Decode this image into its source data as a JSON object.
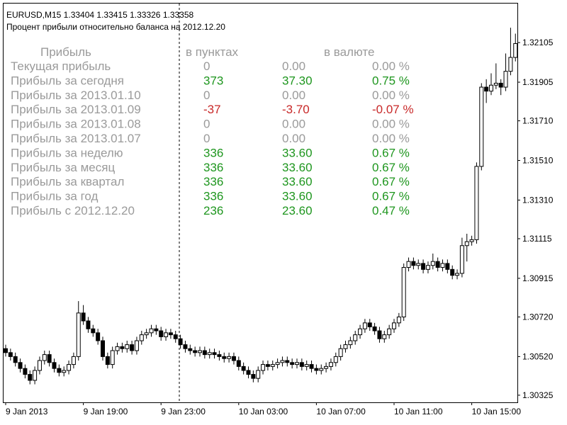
{
  "chart_data": {
    "type": "candlestick",
    "title": "EURUSD,M15  1.33404 1.33415 1.33326 1.33358",
    "subtitle": "Процент прибыли относительно баланса на 2012.12.20",
    "up_color": "#ffffff",
    "down_color": "#000000",
    "wick_color": "#000000",
    "categories": [
      "9 Jan 2013",
      null,
      null,
      null,
      null,
      null,
      null,
      null,
      null,
      null,
      null,
      null,
      null,
      null,
      null,
      null,
      "9 Jan 19:00",
      null,
      null,
      null,
      null,
      null,
      null,
      null,
      null,
      null,
      null,
      null,
      null,
      null,
      null,
      null,
      "9 Jan 23:00",
      null,
      null,
      null,
      null,
      null,
      null,
      null,
      null,
      null,
      null,
      null,
      null,
      null,
      null,
      null,
      "10 Jan 03:00",
      null,
      null,
      null,
      null,
      null,
      null,
      null,
      null,
      null,
      null,
      null,
      null,
      null,
      null,
      null,
      "10 Jan 07:00",
      null,
      null,
      null,
      null,
      null,
      null,
      null,
      null,
      null,
      null,
      null,
      null,
      null,
      null,
      null,
      "10 Jan 11:00",
      null,
      null,
      null,
      null,
      null,
      null,
      null,
      null,
      null,
      null,
      null,
      null,
      null,
      null,
      null,
      "10 Jan 15:00",
      null,
      null,
      null,
      null,
      null,
      null,
      null,
      null,
      null
    ],
    "open": [
      1.3056,
      1.3054,
      1.3052,
      1.3049,
      1.3046,
      1.3043,
      1.304,
      1.3045,
      1.305,
      1.3053,
      1.3049,
      1.3046,
      1.3044,
      1.3045,
      1.3048,
      1.3052,
      1.3074,
      1.307,
      1.3066,
      1.3064,
      1.306,
      1.3052,
      1.3048,
      1.3055,
      1.3057,
      1.3056,
      1.3058,
      1.3055,
      1.306,
      1.3063,
      1.3064,
      1.3066,
      1.3065,
      1.3062,
      1.3064,
      1.3063,
      1.3061,
      1.3058,
      1.3056,
      1.3055,
      1.3054,
      1.3055,
      1.3053,
      1.3054,
      1.3053,
      1.3052,
      1.3051,
      1.3052,
      1.305,
      1.3047,
      1.3045,
      1.3043,
      1.3041,
      1.3045,
      1.3048,
      1.3047,
      1.3048,
      1.3049,
      1.305,
      1.3049,
      1.3048,
      1.3049,
      1.3047,
      1.3048,
      1.3046,
      1.3045,
      1.3046,
      1.3047,
      1.3049,
      1.3052,
      1.3056,
      1.3058,
      1.306,
      1.3063,
      1.3066,
      1.3069,
      1.3067,
      1.3065,
      1.3061,
      1.3063,
      1.3066,
      1.3069,
      1.3072,
      1.3097,
      1.31,
      1.3098,
      1.3099,
      1.3096,
      1.3098,
      1.31,
      1.3097,
      1.3099,
      1.3096,
      1.3093,
      1.3094,
      1.3108,
      1.311,
      1.3111,
      1.3148,
      1.3188,
      1.3186,
      1.3189,
      1.319,
      1.3188,
      1.3196,
      1.3203
    ],
    "high": [
      1.3058,
      1.3056,
      1.3054,
      1.3051,
      1.3048,
      1.3045,
      1.3047,
      1.3052,
      1.3055,
      1.3055,
      1.3051,
      1.3048,
      1.3047,
      1.305,
      1.3054,
      1.308,
      1.3078,
      1.3072,
      1.3068,
      1.3066,
      1.3062,
      1.3054,
      1.3057,
      1.3059,
      1.3059,
      1.306,
      1.306,
      1.3062,
      1.3065,
      1.3066,
      1.3068,
      1.3068,
      1.3067,
      1.3066,
      1.3066,
      1.3065,
      1.3063,
      1.306,
      1.3058,
      1.3057,
      1.3057,
      1.3057,
      1.3056,
      1.3056,
      1.3055,
      1.3054,
      1.3054,
      1.3054,
      1.3052,
      1.3049,
      1.3047,
      1.3045,
      1.3047,
      1.305,
      1.305,
      1.305,
      1.3051,
      1.3052,
      1.3052,
      1.3051,
      1.3051,
      1.3051,
      1.305,
      1.305,
      1.3048,
      1.3048,
      1.3049,
      1.3051,
      1.3054,
      1.3058,
      1.306,
      1.3062,
      1.3065,
      1.3068,
      1.3071,
      1.3071,
      1.3069,
      1.3067,
      1.3065,
      1.3068,
      1.3071,
      1.3074,
      1.3099,
      1.3102,
      1.3102,
      1.3101,
      1.3101,
      1.31,
      1.3104,
      1.3102,
      1.3101,
      1.3101,
      1.3098,
      1.3096,
      1.3112,
      1.3114,
      1.3113,
      1.315,
      1.319,
      1.3192,
      1.3195,
      1.32,
      1.3192,
      1.3205,
      1.3218,
      1.3215
    ],
    "low": [
      1.3052,
      1.305,
      1.3047,
      1.3044,
      1.3041,
      1.3038,
      1.3038,
      1.3043,
      1.3048,
      1.3047,
      1.3044,
      1.3042,
      1.3042,
      1.3043,
      1.3046,
      1.305,
      1.3068,
      1.3064,
      1.3062,
      1.3058,
      1.305,
      1.3046,
      1.3046,
      1.3053,
      1.3054,
      1.3054,
      1.3053,
      1.3053,
      1.3058,
      1.3061,
      1.3062,
      1.3063,
      1.306,
      1.306,
      1.3061,
      1.3059,
      1.3056,
      1.3054,
      1.3053,
      1.3052,
      1.3052,
      1.3051,
      1.3051,
      1.3051,
      1.305,
      1.3049,
      1.3049,
      1.3048,
      1.3045,
      1.3043,
      1.3041,
      1.3039,
      1.3039,
      1.3043,
      1.3045,
      1.3045,
      1.3046,
      1.3047,
      1.3047,
      1.3046,
      1.3046,
      1.3045,
      1.3045,
      1.3044,
      1.3043,
      1.3043,
      1.3044,
      1.3045,
      1.3047,
      1.305,
      1.3054,
      1.3056,
      1.3058,
      1.3061,
      1.3064,
      1.3065,
      1.3063,
      1.3059,
      1.3059,
      1.3061,
      1.3064,
      1.3067,
      1.307,
      1.3095,
      1.3096,
      1.3096,
      1.3094,
      1.3094,
      1.3096,
      1.3095,
      1.3095,
      1.3094,
      1.3091,
      1.3091,
      1.3092,
      1.31,
      1.3108,
      1.3109,
      1.3146,
      1.318,
      1.3184,
      1.3187,
      1.3184,
      1.3186,
      1.3194,
      1.3201
    ],
    "close": [
      1.3054,
      1.3052,
      1.3049,
      1.3046,
      1.3043,
      1.304,
      1.3045,
      1.305,
      1.3053,
      1.3049,
      1.3046,
      1.3044,
      1.3045,
      1.3048,
      1.3052,
      1.3074,
      1.307,
      1.3066,
      1.3064,
      1.306,
      1.3052,
      1.3048,
      1.3055,
      1.3057,
      1.3056,
      1.3058,
      1.3055,
      1.306,
      1.3063,
      1.3064,
      1.3066,
      1.3065,
      1.3062,
      1.3064,
      1.3063,
      1.3061,
      1.3058,
      1.3056,
      1.3055,
      1.3054,
      1.3055,
      1.3053,
      1.3054,
      1.3053,
      1.3052,
      1.3051,
      1.3052,
      1.305,
      1.3047,
      1.3045,
      1.3043,
      1.3041,
      1.3045,
      1.3048,
      1.3047,
      1.3048,
      1.3049,
      1.305,
      1.3049,
      1.3048,
      1.3049,
      1.3047,
      1.3048,
      1.3046,
      1.3045,
      1.3046,
      1.3047,
      1.3049,
      1.3052,
      1.3056,
      1.3058,
      1.306,
      1.3063,
      1.3066,
      1.3069,
      1.3067,
      1.3065,
      1.3061,
      1.3063,
      1.3066,
      1.3069,
      1.3072,
      1.3097,
      1.31,
      1.3098,
      1.3099,
      1.3096,
      1.3098,
      1.31,
      1.3097,
      1.3099,
      1.3096,
      1.3093,
      1.3094,
      1.3108,
      1.311,
      1.3111,
      1.3148,
      1.3188,
      1.3186,
      1.3189,
      1.319,
      1.3188,
      1.3196,
      1.3203,
      1.321
    ],
    "ylim": [
      1.30289,
      1.32302
    ],
    "yticks": [
      1.32105,
      1.31905,
      {
        "value": 1.3171,
        "label": "1.31710"
      },
      {
        "value": 1.3151,
        "label": "1.31510"
      },
      {
        "value": 1.3131,
        "label": "1.31310"
      },
      1.31115,
      1.30915,
      {
        "value": 1.3072,
        "label": "1.30720"
      },
      {
        "value": 1.3052,
        "label": "1.30520"
      },
      1.30325
    ],
    "profit_table": {
      "headers": [
        "Прибыль",
        "в пунктах",
        "в валюте"
      ],
      "label_color": "#9a9a9a",
      "rows": [
        {
          "label": "Текущая прибыль",
          "points": "0",
          "money": "0.00",
          "percent": "0.00 %",
          "color": "#9a9a9a"
        },
        {
          "label": "Прибыль за сегодня",
          "points": "373",
          "money": "37.30",
          "percent": "0.75 %",
          "color": "#1e961e"
        },
        {
          "label": "Прибыль за 2013.01.10",
          "points": "0",
          "money": "0.00",
          "percent": "0.00 %",
          "color": "#9a9a9a"
        },
        {
          "label": "Прибыль за 2013.01.09",
          "points": "-37",
          "money": "-3.70",
          "percent": "-0.07 %",
          "color": "#c82828"
        },
        {
          "label": "Прибыль за 2013.01.08",
          "points": "0",
          "money": "0.00",
          "percent": "0.00 %",
          "color": "#9a9a9a"
        },
        {
          "label": "Прибыль за 2013.01.07",
          "points": "0",
          "money": "0.00",
          "percent": "0.00 %",
          "color": "#9a9a9a"
        },
        {
          "label": "Прибыль за неделю",
          "points": "336",
          "money": "33.60",
          "percent": "0.67 %",
          "color": "#1e961e"
        },
        {
          "label": "Прибыль за месяц",
          "points": "336",
          "money": "33.60",
          "percent": "0.67 %",
          "color": "#1e961e"
        },
        {
          "label": "Прибыль за квартал",
          "points": "336",
          "money": "33.60",
          "percent": "0.67 %",
          "color": "#1e961e"
        },
        {
          "label": "Прибыль за год",
          "points": "336",
          "money": "33.60",
          "percent": "0.67 %",
          "color": "#1e961e"
        },
        {
          "label": "Прибыль с 2012.12.20",
          "points": "236",
          "money": "23.60",
          "percent": "0.47 %",
          "color": "#1e961e"
        }
      ]
    }
  }
}
